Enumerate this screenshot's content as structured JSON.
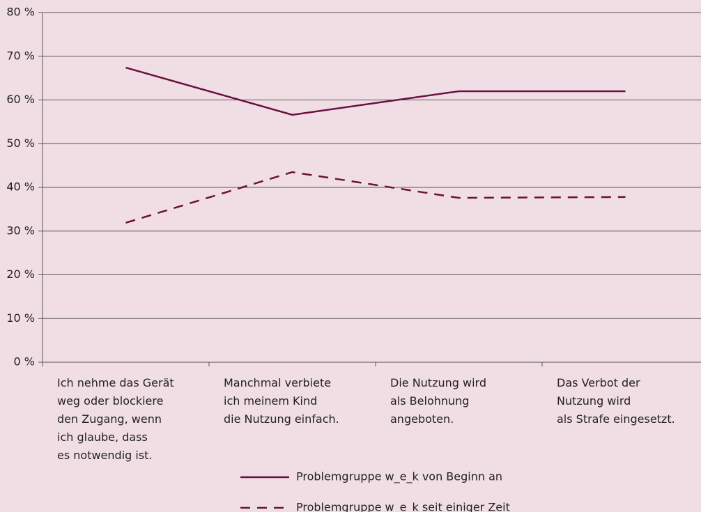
{
  "chart_data": {
    "type": "line",
    "categories": [
      [
        "Ich nehme das Gerät",
        "weg oder blockiere",
        "den Zugang, wenn",
        "ich glaube, dass",
        "es notwendig ist."
      ],
      [
        "Manchmal verbiete",
        "ich meinem Kind",
        "die Nutzung einfach."
      ],
      [
        "Die Nutzung wird",
        "als Belohnung",
        "angeboten."
      ],
      [
        "Das Verbot der",
        "Nutzung wird",
        "als Strafe eingesetzt."
      ]
    ],
    "series": [
      {
        "name": "Problemgruppe w_e_k von Beginn an",
        "color": "#6b1040",
        "line_style": "solid",
        "values": [
          67.4,
          56.6,
          62.0,
          62.0
        ]
      },
      {
        "name": "Problemgruppe w_e_k seit einiger Zeit",
        "color": "#6b1040",
        "line_style": "dashed",
        "values": [
          31.9,
          43.5,
          37.6,
          37.8
        ]
      }
    ],
    "ylim": [
      0,
      80
    ],
    "yticks": [
      {
        "value": 0,
        "label": "0 %"
      },
      {
        "value": 10,
        "label": "10 %"
      },
      {
        "value": 20,
        "label": "20 %"
      },
      {
        "value": 30,
        "label": "30 %"
      },
      {
        "value": 40,
        "label": "40 %"
      },
      {
        "value": 50,
        "label": "50 %"
      },
      {
        "value": 60,
        "label": "60 %"
      },
      {
        "value": 70,
        "label": "70 %"
      },
      {
        "value": 80,
        "label": "80 %"
      }
    ],
    "grid": true
  }
}
